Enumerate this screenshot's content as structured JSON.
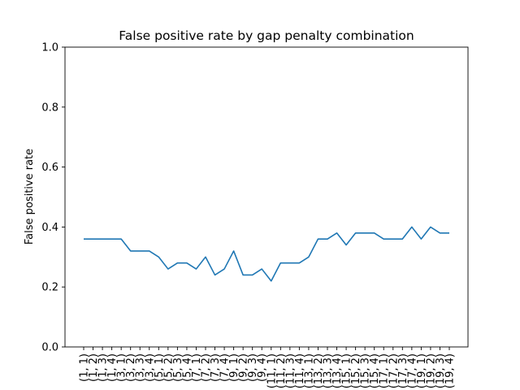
{
  "chart_data": {
    "type": "line",
    "title": "False positive rate by gap penalty combination",
    "xlabel": "",
    "ylabel": "False positive rate",
    "ylim": [
      0.0,
      1.0
    ],
    "yticks": [
      "0.0",
      "0.2",
      "0.4",
      "0.6",
      "0.8",
      "1.0"
    ],
    "grid": false,
    "legend": "none",
    "line_color": "#1f77b4",
    "categories": [
      "(1, 1)",
      "(1, 2)",
      "(1, 3)",
      "(1, 4)",
      "(3, 1)",
      "(3, 2)",
      "(3, 3)",
      "(3, 4)",
      "(5, 1)",
      "(5, 2)",
      "(5, 3)",
      "(5, 4)",
      "(7, 1)",
      "(7, 2)",
      "(7, 3)",
      "(7, 4)",
      "(9, 1)",
      "(9, 2)",
      "(9, 3)",
      "(9, 4)",
      "(11, 1)",
      "(11, 2)",
      "(11, 3)",
      "(11, 4)",
      "(13, 1)",
      "(13, 2)",
      "(13, 3)",
      "(13, 4)",
      "(15, 1)",
      "(15, 2)",
      "(15, 3)",
      "(15, 4)",
      "(17, 1)",
      "(17, 2)",
      "(17, 3)",
      "(17, 4)",
      "(19, 1)",
      "(19, 2)",
      "(19, 3)",
      "(19, 4)"
    ],
    "values": [
      0.36,
      0.36,
      0.36,
      0.36,
      0.36,
      0.32,
      0.32,
      0.32,
      0.3,
      0.26,
      0.28,
      0.28,
      0.26,
      0.3,
      0.24,
      0.26,
      0.32,
      0.24,
      0.24,
      0.26,
      0.22,
      0.28,
      0.28,
      0.28,
      0.3,
      0.36,
      0.36,
      0.38,
      0.34,
      0.38,
      0.38,
      0.38,
      0.36,
      0.36,
      0.36,
      0.4,
      0.36,
      0.4,
      0.38,
      0.38
    ]
  }
}
